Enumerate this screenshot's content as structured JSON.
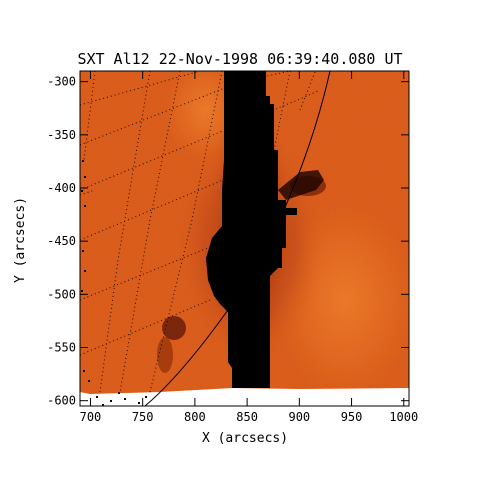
{
  "title": "SXT Al12 22-Nov-1998 06:39:40.080 UT",
  "xlabel": "X (arcsecs)",
  "ylabel": "Y (arcsecs)",
  "x_axis": {
    "range": [
      690,
      1005
    ],
    "ticks": [
      {
        "value": 700,
        "label": "700"
      },
      {
        "value": 750,
        "label": "750"
      },
      {
        "value": 800,
        "label": "800"
      },
      {
        "value": 850,
        "label": "850"
      },
      {
        "value": 900,
        "label": "900"
      },
      {
        "value": 950,
        "label": "950"
      },
      {
        "value": 1000,
        "label": "1000"
      }
    ]
  },
  "y_axis": {
    "range": [
      -605,
      -290
    ],
    "ticks": [
      {
        "value": -300,
        "label": "-300"
      },
      {
        "value": -350,
        "label": "-350"
      },
      {
        "value": -400,
        "label": "-400"
      },
      {
        "value": -450,
        "label": "-450"
      },
      {
        "value": -500,
        "label": "-500"
      },
      {
        "value": -550,
        "label": "-550"
      },
      {
        "value": -600,
        "label": "-600"
      }
    ]
  },
  "colors": {
    "background_orange": "#e3611c",
    "bright_orange": "#f07a2a",
    "dark_red": "#9a2c0a",
    "saturated_black": "#000000",
    "frame": "#000000"
  }
}
